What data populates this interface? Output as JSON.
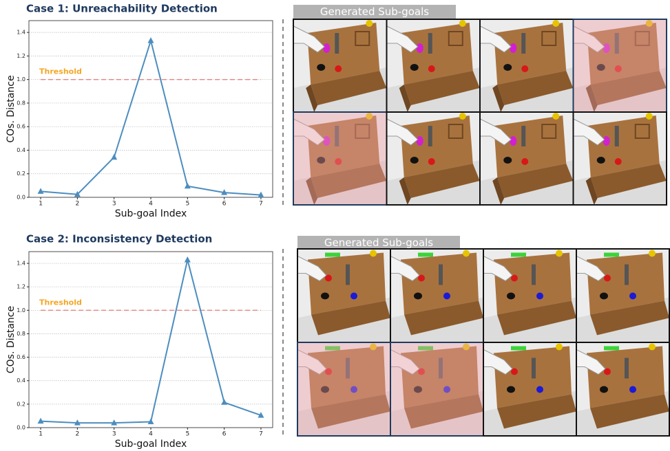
{
  "chart_data": [
    {
      "type": "line",
      "title": "Case 1: Unreachability Detection",
      "xlabel": "Sub-goal Index",
      "ylabel": "COs. Distance",
      "x": [
        1,
        2,
        3,
        4,
        5,
        6,
        7
      ],
      "values": [
        0.05,
        0.025,
        0.34,
        1.33,
        0.095,
        0.04,
        0.02
      ],
      "color": "#4c8dbf",
      "marker": "triangle",
      "xlim": [
        0.68,
        7.32
      ],
      "xticks": [
        1,
        2,
        3,
        4,
        5,
        6,
        7
      ],
      "ylim": [
        0,
        1.5
      ],
      "yticks": [
        {
          "value": 0,
          "label": "0.0"
        },
        0.2,
        0.4,
        0.6,
        0.8,
        {
          "value": 1,
          "label": "1.0"
        },
        1.2,
        1.4
      ],
      "grid": true,
      "threshold": 1,
      "threshold_label": "Threshold",
      "threshold_color": "#e8837e"
    },
    {
      "type": "line",
      "title": "Case 2: Inconsistency Detection",
      "xlabel": "Sub-goal Index",
      "ylabel": "COs. Distance",
      "x": [
        1,
        2,
        3,
        4,
        5,
        6,
        7
      ],
      "values": [
        0.055,
        0.04,
        0.04,
        0.05,
        1.43,
        0.215,
        0.105
      ],
      "color": "#4c8dbf",
      "marker": "triangle",
      "xlim": [
        0.68,
        7.32
      ],
      "xticks": [
        1,
        2,
        3,
        4,
        5,
        6,
        7
      ],
      "ylim": [
        0,
        1.5
      ],
      "yticks": [
        {
          "value": 0,
          "label": "0.0"
        },
        0.2,
        0.4,
        0.6,
        0.8,
        {
          "value": 1,
          "label": "1.0"
        },
        1.2,
        1.4
      ],
      "grid": true,
      "threshold": 1,
      "threshold_label": "Threshold",
      "threshold_color": "#e8837e"
    }
  ],
  "panels": [
    {
      "label": "Generated Sub-goals"
    },
    {
      "label": "Generated Sub-goals"
    }
  ]
}
